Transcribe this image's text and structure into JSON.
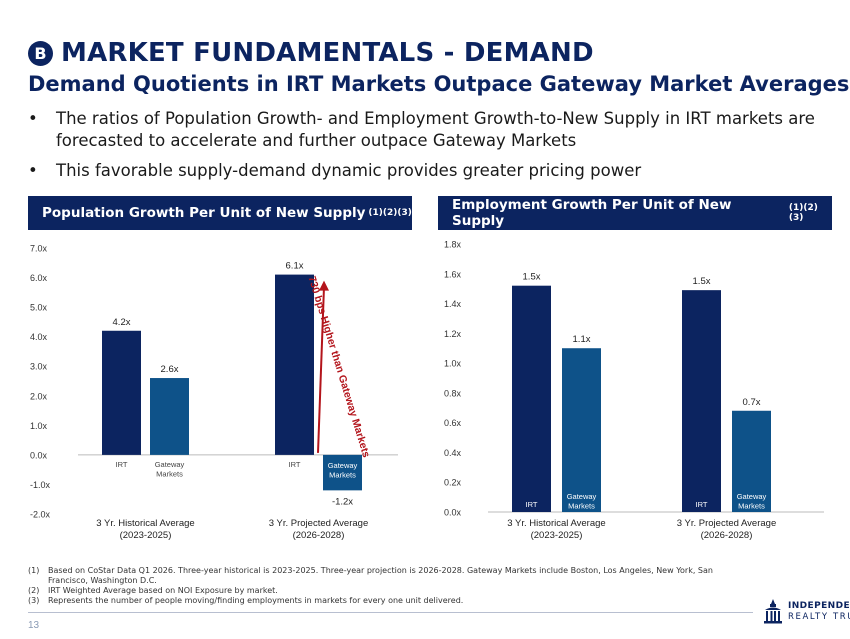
{
  "header": {
    "badge": "B",
    "title": "MARKET FUNDAMENTALS - DEMAND",
    "subtitle": "Demand Quotients in IRT Markets Outpace Gateway Market Averages"
  },
  "bullets": [
    "The ratios of Population Growth- and Employment Growth-to-New Supply in IRT markets are forecasted to accelerate and further outpace Gateway Markets",
    "This favorable supply-demand dynamic provides greater pricing power"
  ],
  "colors": {
    "navy": "#0c2460",
    "blue": "#0e5289",
    "annotation_red": "#b3141b"
  },
  "chart_data": [
    {
      "type": "bar",
      "title": "Population Growth Per Unit of New Supply",
      "title_superscript": "(1)(2)(3)",
      "groups": [
        {
          "label_line1": "3 Yr. Historical Average",
          "label_line2": "(2023-2025)"
        },
        {
          "label_line1": "3 Yr. Projected Average",
          "label_line2": "(2026-2028)"
        }
      ],
      "series": [
        {
          "name": "IRT",
          "values": [
            4.2,
            6.1
          ],
          "data_labels": [
            "4.2x",
            "6.1x"
          ]
        },
        {
          "name": "Gateway Markets",
          "values": [
            2.6,
            -1.2
          ],
          "data_labels": [
            "2.6x",
            "-1.2x"
          ]
        }
      ],
      "series_labels_in_chart": [
        [
          "IRT",
          "Gateway Markets"
        ],
        [
          "IRT",
          "Gateway Markets"
        ]
      ],
      "yticks": [
        "7.0x",
        "6.0x",
        "5.0x",
        "4.0x",
        "3.0x",
        "2.0x",
        "1.0x",
        "0.0x",
        "-1.0x",
        "-2.0x"
      ],
      "ylim": [
        -2,
        7
      ],
      "annotation": "730 bps Higher than Gateway Markets",
      "grid": false
    },
    {
      "type": "bar",
      "title": "Employment Growth Per Unit of New Supply",
      "title_superscript": "(1)(2)(3)",
      "groups": [
        {
          "label_line1": "3 Yr. Historical Average",
          "label_line2": "(2023-2025)"
        },
        {
          "label_line1": "3 Yr. Projected Average",
          "label_line2": "(2026-2028)"
        }
      ],
      "series": [
        {
          "name": "IRT",
          "values": [
            1.52,
            1.49
          ],
          "data_labels": [
            "1.5x",
            "1.5x"
          ]
        },
        {
          "name": "Gateway Markets",
          "values": [
            1.1,
            0.68
          ],
          "data_labels": [
            "1.1x",
            "0.7x"
          ]
        }
      ],
      "series_labels_in_chart": [
        [
          "IRT",
          "Gateway Markets"
        ],
        [
          "IRT",
          "Gateway Markets"
        ]
      ],
      "yticks": [
        "1.8x",
        "1.6x",
        "1.4x",
        "1.2x",
        "1.0x",
        "0.8x",
        "0.6x",
        "0.4x",
        "0.2x",
        "0.0x"
      ],
      "ylim": [
        0,
        1.8
      ],
      "grid": false
    }
  ],
  "footnotes": [
    {
      "num": "(1)",
      "text": "Based on CoStar Data Q1 2026. Three-year historical is 2023-2025. Three-year projection is 2026-2028. Gateway Markets include Boston, Los Angeles, New York, San Francisco, Washington D.C."
    },
    {
      "num": "(2)",
      "text": "IRT Weighted Average based on NOI Exposure by market."
    },
    {
      "num": "(3)",
      "text": "Represents the number of people moving/finding employments in markets for every one unit delivered."
    }
  ],
  "page_number": "13",
  "logo": {
    "name": "logo-icon",
    "line1": "INDEPENDENCE",
    "line2": "REALTY TRUST"
  }
}
